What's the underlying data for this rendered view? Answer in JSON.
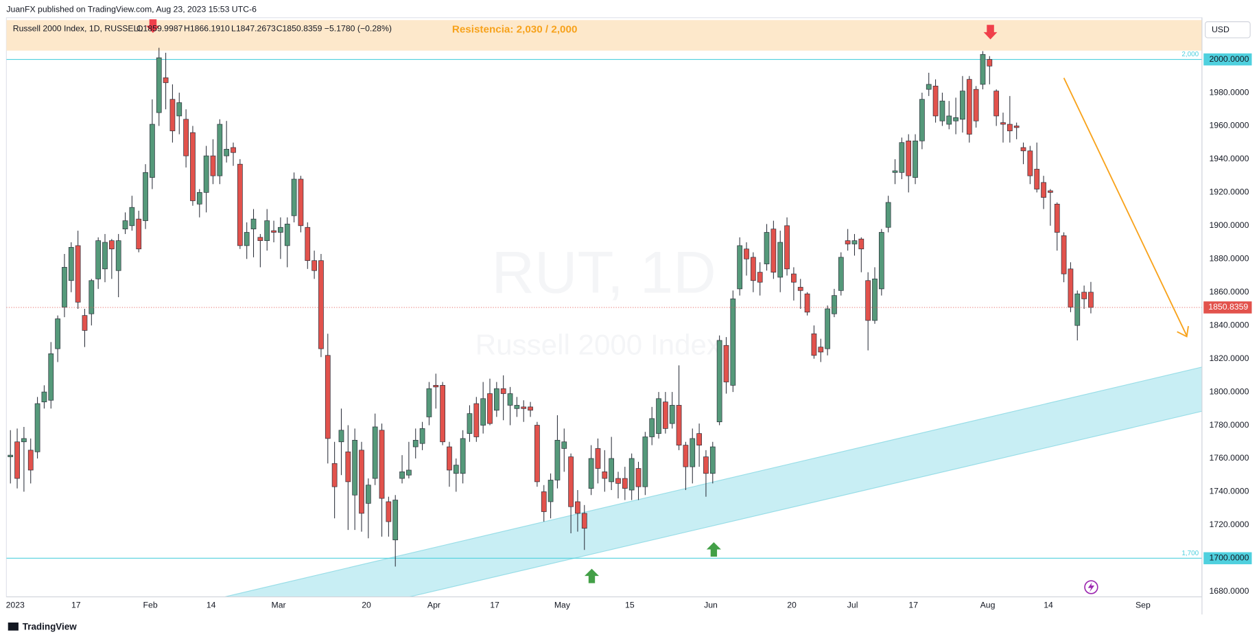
{
  "chart_data": {
    "type": "candlestick",
    "publisher": "JuanFX published on TradingView.com, Aug 23, 2023 15:53 UTC-6",
    "title": "Russell 2000 Index, 1D, RUSSELL",
    "ohlc_labels": [
      "O1859.9987",
      "H1866.1910",
      "L1847.2673",
      "C1850.8359"
    ],
    "change_label": "−5.1780 (−0.28%)",
    "annotation": "Resistencia: 2,030 / 2,000",
    "watermark": [
      "RUT, 1D",
      "Russell 2000 Index"
    ],
    "currency": "USD",
    "brand": "TradingView",
    "x": [
      "2023-01-03",
      "2023-01-04",
      "2023-01-05",
      "2023-01-06",
      "2023-01-09",
      "2023-01-10",
      "2023-01-11",
      "2023-01-12",
      "2023-01-13",
      "2023-01-17",
      "2023-01-18",
      "2023-01-19",
      "2023-01-20",
      "2023-01-23",
      "2023-01-24",
      "2023-01-25",
      "2023-01-26",
      "2023-01-27",
      "2023-01-30",
      "2023-01-31",
      "2023-02-01",
      "2023-02-02",
      "2023-02-03",
      "2023-02-06",
      "2023-02-07",
      "2023-02-08",
      "2023-02-09",
      "2023-02-10",
      "2023-02-13",
      "2023-02-14",
      "2023-02-15",
      "2023-02-16",
      "2023-02-17",
      "2023-02-21",
      "2023-02-22",
      "2023-02-23",
      "2023-02-24",
      "2023-02-27",
      "2023-02-28",
      "2023-03-01",
      "2023-03-02",
      "2023-03-03",
      "2023-03-06",
      "2023-03-07",
      "2023-03-08",
      "2023-03-09",
      "2023-03-10",
      "2023-03-13",
      "2023-03-14",
      "2023-03-15",
      "2023-03-16",
      "2023-03-17",
      "2023-03-20",
      "2023-03-21",
      "2023-03-22",
      "2023-03-23",
      "2023-03-24",
      "2023-03-27",
      "2023-03-28",
      "2023-03-29",
      "2023-03-30",
      "2023-03-31",
      "2023-04-03",
      "2023-04-04",
      "2023-04-05",
      "2023-04-06",
      "2023-04-10",
      "2023-04-11",
      "2023-04-12",
      "2023-04-13",
      "2023-04-14",
      "2023-04-17",
      "2023-04-18",
      "2023-04-19",
      "2023-04-20",
      "2023-04-21",
      "2023-04-24",
      "2023-04-25",
      "2023-04-26",
      "2023-04-27",
      "2023-04-28",
      "2023-05-01",
      "2023-05-02",
      "2023-05-03",
      "2023-05-04",
      "2023-05-05",
      "2023-05-08",
      "2023-05-09",
      "2023-05-10",
      "2023-05-11",
      "2023-05-12",
      "2023-05-15",
      "2023-05-16",
      "2023-05-17",
      "2023-05-18",
      "2023-05-19",
      "2023-05-22",
      "2023-05-23",
      "2023-05-24",
      "2023-05-25",
      "2023-05-26",
      "2023-05-30",
      "2023-05-31",
      "2023-06-01",
      "2023-06-02",
      "2023-06-05",
      "2023-06-06",
      "2023-06-07",
      "2023-06-08",
      "2023-06-09",
      "2023-06-12",
      "2023-06-13",
      "2023-06-14",
      "2023-06-15",
      "2023-06-16",
      "2023-06-20",
      "2023-06-21",
      "2023-06-22",
      "2023-06-23",
      "2023-06-26",
      "2023-06-27",
      "2023-06-28",
      "2023-06-29",
      "2023-06-30",
      "2023-07-03",
      "2023-07-05",
      "2023-07-06",
      "2023-07-07",
      "2023-07-10",
      "2023-07-11",
      "2023-07-12",
      "2023-07-13",
      "2023-07-14",
      "2023-07-17",
      "2023-07-18",
      "2023-07-19",
      "2023-07-20",
      "2023-07-21",
      "2023-07-24",
      "2023-07-25",
      "2023-07-26",
      "2023-07-27",
      "2023-07-28",
      "2023-07-31",
      "2023-08-01",
      "2023-08-02",
      "2023-08-03",
      "2023-08-04",
      "2023-08-07",
      "2023-08-08",
      "2023-08-09",
      "2023-08-10",
      "2023-08-11",
      "2023-08-14",
      "2023-08-15",
      "2023-08-16",
      "2023-08-17",
      "2023-08-18",
      "2023-08-21",
      "2023-08-22",
      "2023-08-23"
    ],
    "series": [
      {
        "name": "Russell 2000 Index",
        "up_color": "#55997a",
        "down_color": "#e2524c",
        "open": [
          1761,
          1770,
          1770,
          1765,
          1764,
          1794,
          1795,
          1826,
          1851,
          1867,
          1888,
          1846,
          1847,
          1868,
          1874,
          1891,
          1873,
          1898,
          1900,
          1904,
          1903,
          1929,
          1968,
          1989,
          1976,
          1966,
          1964,
          1956,
          1913,
          1920,
          1942,
          1930,
          1942,
          1947,
          1937,
          1888,
          1898,
          1893,
          1891,
          1897,
          1896,
          1888,
          1906,
          1928,
          1899,
          1879,
          1879,
          1822,
          1757,
          1770,
          1764,
          1738,
          1765,
          1733,
          1748,
          1777,
          1734,
          1711,
          1748,
          1750,
          1767,
          1769,
          1785,
          1804,
          1804,
          1767,
          1751,
          1751,
          1775,
          1793,
          1780,
          1799,
          1789,
          1802,
          1792,
          1790,
          1791,
          1791,
          1780,
          1740,
          1734,
          1747,
          1766,
          1761,
          1734,
          1727,
          1742,
          1766,
          1752,
          1746,
          1748,
          1748,
          1741,
          1754,
          1743,
          1773,
          1775,
          1794,
          1781,
          1792,
          1768,
          1755,
          1775,
          1761,
          1751,
          1782,
          1828,
          1804,
          1862,
          1886,
          1881,
          1872,
          1877,
          1898,
          1869,
          1900,
          1871,
          1863,
          1859,
          1835,
          1827,
          1826,
          1847,
          1861,
          1891,
          1889,
          1892,
          1867,
          1843,
          1862,
          1899,
          1932,
          1932,
          1951,
          1929,
          1951,
          1982,
          1984,
          1963,
          1961,
          1963,
          1964,
          1988,
          1982,
          1985,
          2000,
          1981,
          1962,
          1961,
          1960,
          1947,
          1945,
          1934,
          1926,
          1921,
          1913,
          1894,
          1874,
          1840,
          1860,
          1859.9987
        ],
        "high": [
          1777,
          1778,
          1779,
          1772,
          1797,
          1804,
          1830,
          1846,
          1883,
          1890,
          1897,
          1850,
          1868,
          1893,
          1895,
          1892,
          1895,
          1908,
          1918,
          1909,
          1937,
          1976,
          2007,
          2004,
          1985,
          1980,
          1970,
          1960,
          1922,
          1948,
          1952,
          1964,
          1963,
          1950,
          1940,
          1902,
          1910,
          1895,
          1910,
          1903,
          1905,
          1905,
          1932,
          1930,
          1902,
          1885,
          1883,
          1835,
          1770,
          1790,
          1780,
          1778,
          1770,
          1748,
          1787,
          1781,
          1737,
          1738,
          1762,
          1770,
          1778,
          1782,
          1806,
          1811,
          1806,
          1770,
          1760,
          1777,
          1792,
          1797,
          1806,
          1808,
          1806,
          1810,
          1803,
          1797,
          1795,
          1794,
          1782,
          1744,
          1751,
          1786,
          1778,
          1763,
          1741,
          1732,
          1768,
          1772,
          1765,
          1773,
          1752,
          1755,
          1763,
          1758,
          1776,
          1791,
          1800,
          1800,
          1800,
          1816,
          1770,
          1778,
          1781,
          1765,
          1770,
          1834,
          1833,
          1861,
          1893,
          1890,
          1884,
          1878,
          1901,
          1903,
          1897,
          1905,
          1875,
          1868,
          1860,
          1840,
          1832,
          1852,
          1862,
          1884,
          1898,
          1895,
          1893,
          1872,
          1875,
          1898,
          1918,
          1940,
          1953,
          1955,
          1955,
          1980,
          1992,
          1988,
          1980,
          1975,
          1977,
          1990,
          1990,
          1984,
          2005,
          2002,
          1982,
          1968,
          1978,
          1962,
          1950,
          1948,
          1950,
          1930,
          1922,
          1914,
          1896,
          1878,
          1861,
          1864,
          1866.191
        ],
        "low": [
          1745,
          1742,
          1740,
          1745,
          1760,
          1790,
          1790,
          1818,
          1845,
          1860,
          1850,
          1827,
          1840,
          1862,
          1866,
          1868,
          1857,
          1895,
          1897,
          1884,
          1898,
          1922,
          1960,
          1970,
          1950,
          1955,
          1935,
          1912,
          1905,
          1908,
          1925,
          1925,
          1938,
          1936,
          1886,
          1880,
          1881,
          1875,
          1885,
          1890,
          1880,
          1875,
          1902,
          1896,
          1874,
          1868,
          1821,
          1757,
          1724,
          1750,
          1717,
          1717,
          1716,
          1712,
          1744,
          1713,
          1713,
          1695,
          1745,
          1748,
          1760,
          1765,
          1780,
          1790,
          1768,
          1743,
          1740,
          1745,
          1770,
          1770,
          1775,
          1780,
          1785,
          1783,
          1780,
          1785,
          1782,
          1785,
          1743,
          1722,
          1724,
          1742,
          1752,
          1715,
          1716,
          1705,
          1738,
          1745,
          1740,
          1741,
          1736,
          1735,
          1735,
          1735,
          1738,
          1768,
          1772,
          1775,
          1778,
          1765,
          1741,
          1745,
          1755,
          1737,
          1745,
          1780,
          1799,
          1800,
          1858,
          1870,
          1860,
          1858,
          1873,
          1868,
          1860,
          1870,
          1855,
          1850,
          1846,
          1820,
          1818,
          1822,
          1845,
          1858,
          1885,
          1882,
          1872,
          1825,
          1841,
          1858,
          1896,
          1925,
          1928,
          1920,
          1925,
          1946,
          1978,
          1962,
          1960,
          1958,
          1955,
          1956,
          1950,
          1959,
          1982,
          1985,
          1960,
          1950,
          1950,
          1952,
          1937,
          1925,
          1920,
          1910,
          1900,
          1885,
          1866,
          1848,
          1831,
          1850,
          1847.2673
        ],
        "close": [
          1762,
          1748,
          1772,
          1753,
          1793,
          1800,
          1823,
          1844,
          1875,
          1887,
          1854,
          1837,
          1867,
          1891,
          1890,
          1886,
          1891,
          1903,
          1911,
          1886,
          1932,
          1961,
          2001,
          1986,
          1957,
          1974,
          1942,
          1915,
          1920,
          1942,
          1930,
          1961,
          1946,
          1944,
          1888,
          1896,
          1904,
          1891,
          1903,
          1896,
          1899,
          1901,
          1928,
          1900,
          1879,
          1873,
          1826,
          1772,
          1743,
          1777,
          1746,
          1771,
          1727,
          1744,
          1779,
          1736,
          1722,
          1735,
          1752,
          1753,
          1771,
          1778,
          1802,
          1803,
          1770,
          1753,
          1756,
          1772,
          1787,
          1773,
          1796,
          1781,
          1802,
          1799,
          1799,
          1792,
          1790,
          1789,
          1746,
          1728,
          1747,
          1771,
          1770,
          1731,
          1727,
          1718,
          1760,
          1754,
          1748,
          1760,
          1745,
          1742,
          1760,
          1743,
          1773,
          1784,
          1796,
          1778,
          1792,
          1768,
          1755,
          1772,
          1768,
          1751,
          1767,
          1831,
          1806,
          1856,
          1888,
          1880,
          1867,
          1866,
          1896,
          1872,
          1890,
          1874,
          1866,
          1861,
          1848,
          1822,
          1824,
          1850,
          1858,
          1881,
          1889,
          1891,
          1886,
          1843,
          1868,
          1896,
          1914,
          1933,
          1950,
          1930,
          1951,
          1976,
          1985,
          1966,
          1975,
          1966,
          1965,
          1981,
          1955,
          1963,
          2003,
          1996,
          1966,
          1961,
          1957,
          1959,
          1945,
          1930,
          1922,
          1917,
          1920,
          1896,
          1871,
          1851,
          1859,
          1856,
          1850.8359
        ]
      }
    ],
    "ylim": [
      1676.8,
      2025.1
    ],
    "yticks": [
      {
        "value": 1680,
        "label": "1680.0000"
      },
      {
        "value": 1700,
        "label": "1700.0000"
      },
      {
        "value": 1720,
        "label": "1720.0000"
      },
      {
        "value": 1740,
        "label": "1740.0000"
      },
      {
        "value": 1760,
        "label": "1760.0000"
      },
      {
        "value": 1780,
        "label": "1780.0000"
      },
      {
        "value": 1800,
        "label": "1800.0000"
      },
      {
        "value": 1820,
        "label": "1820.0000"
      },
      {
        "value": 1840,
        "label": "1840.0000"
      },
      {
        "value": 1860,
        "label": "1860.0000"
      },
      {
        "value": 1880,
        "label": "1880.0000"
      },
      {
        "value": 1900,
        "label": "1900.0000"
      },
      {
        "value": 1920,
        "label": "1920.0000"
      },
      {
        "value": 1940,
        "label": "1940.0000"
      },
      {
        "value": 1960,
        "label": "1960.0000"
      },
      {
        "value": 1980,
        "label": "1980.0000"
      },
      {
        "value": 2000,
        "label": "2000.0000"
      }
    ],
    "xticks": [
      {
        "value": "2023-01-03",
        "label": "2023"
      },
      {
        "value": "2023-01-17",
        "label": "17"
      },
      {
        "value": "2023-02-01",
        "label": "Feb"
      },
      {
        "value": "2023-02-14",
        "label": "14"
      },
      {
        "value": "2023-03-01",
        "label": "Mar"
      },
      {
        "value": "2023-03-20",
        "label": "20"
      },
      {
        "value": "2023-04-03",
        "label": "Apr"
      },
      {
        "value": "2023-04-17",
        "label": "17"
      },
      {
        "value": "2023-05-01",
        "label": "May"
      },
      {
        "value": "2023-05-15",
        "label": "15"
      },
      {
        "value": "2023-06-01",
        "label": "Jun"
      },
      {
        "value": "2023-06-20",
        "label": "20"
      },
      {
        "value": "2023-07-03",
        "label": "Jul"
      },
      {
        "value": "2023-07-17",
        "label": "17"
      },
      {
        "value": "2023-08-01",
        "label": "Aug"
      },
      {
        "value": "2023-08-14",
        "label": "14"
      },
      {
        "value": "2023-09-01",
        "label": "Sep"
      }
    ],
    "levels": [
      {
        "value": 2000,
        "label": "2,000",
        "axis_label": "2000.0000",
        "color": "#4fd0de"
      },
      {
        "value": 1700,
        "label": "1,700",
        "axis_label": "1700.0000",
        "color": "#4fd0de"
      }
    ],
    "last_price_color": "#e2524c",
    "grid": false
  }
}
